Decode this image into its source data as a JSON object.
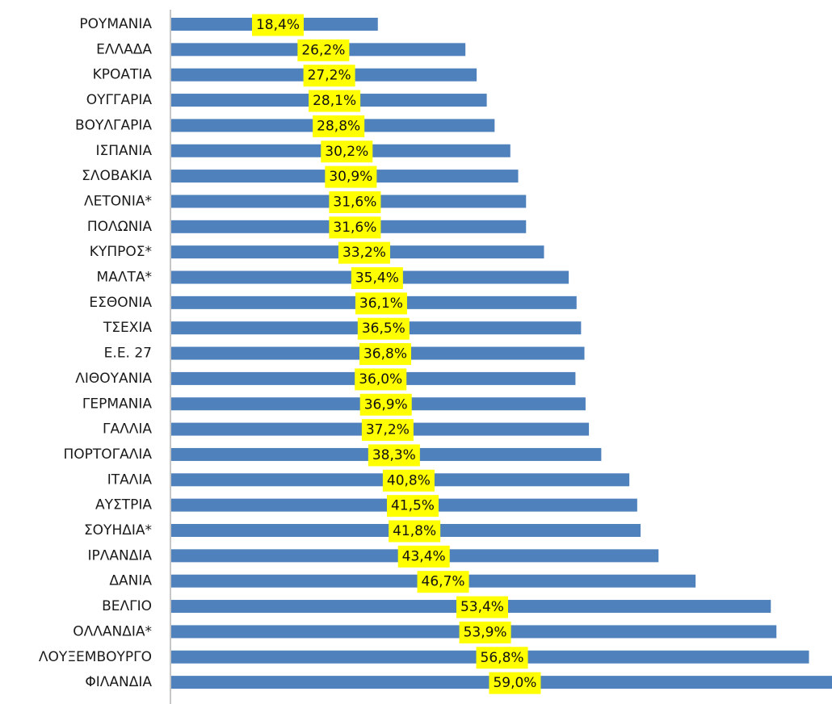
{
  "chart_data": {
    "type": "bar",
    "orientation": "horizontal",
    "title": "",
    "xlabel": "",
    "ylabel": "",
    "xlim": [
      0,
      60
    ],
    "grid": false,
    "legend": "none",
    "colors": {
      "bar": "#4f81bd",
      "label_bg": "#ffff00",
      "axis": "#8c8c8c"
    },
    "categories": [
      "ΡΟΥΜΑΝΙΑ",
      "ΕΛΛΑΔΑ",
      "ΚΡΟΑΤΙΑ",
      "ΟΥΓΓΑΡΙΑ",
      "ΒΟΥΛΓΑΡΙΑ",
      "ΙΣΠΑΝΙΑ",
      "ΣΛΟΒΑΚΙΑ",
      "ΛΕΤΟΝΙΑ*",
      "ΠΟΛΩΝΙΑ",
      "ΚΥΠΡΟΣ*",
      "ΜΑΛΤΑ*",
      "ΕΣΘΟΝΙΑ",
      "ΤΣΕΧΙΑ",
      "Ε.Ε. 27",
      "ΛΙΘΟΥΑΝΙΑ",
      "ΓΕΡΜΑΝΙΑ",
      "ΓΑΛΛΙΑ",
      "ΠΟΡΤΟΓΑΛΙΑ",
      "ΙΤΑΛΙΑ",
      "ΑΥΣΤΡΙΑ",
      "ΣΟΥΗΔΙΑ*",
      "ΙΡΛΑΝΔΙΑ",
      "ΔΑΝΙΑ",
      "ΒΕΛΓΙΟ",
      "ΟΛΛΑΝΔΙΑ*",
      "ΛΟΥΞΕΜΒΟΥΡΓΟ",
      "ΦΙΛΑΝΔΙΑ"
    ],
    "values": [
      18.4,
      26.2,
      27.2,
      28.1,
      28.8,
      30.2,
      30.9,
      31.6,
      31.6,
      33.2,
      35.4,
      36.1,
      36.5,
      36.8,
      36.0,
      36.9,
      37.2,
      38.3,
      40.8,
      41.5,
      41.8,
      43.4,
      46.7,
      53.4,
      53.9,
      56.8,
      59.0
    ],
    "data_labels": [
      "18,4%",
      "26,2%",
      "27,2%",
      "28,1%",
      "28,8%",
      "30,2%",
      "30,9%",
      "31,6%",
      "31,6%",
      "33,2%",
      "35,4%",
      "36,1%",
      "36,5%",
      "36,8%",
      "36,0%",
      "36,9%",
      "37,2%",
      "38,3%",
      "40,8%",
      "41,5%",
      "41,8%",
      "43,4%",
      "46,7%",
      "53,4%",
      "53,9%",
      "56,8%",
      "59,0%"
    ]
  }
}
